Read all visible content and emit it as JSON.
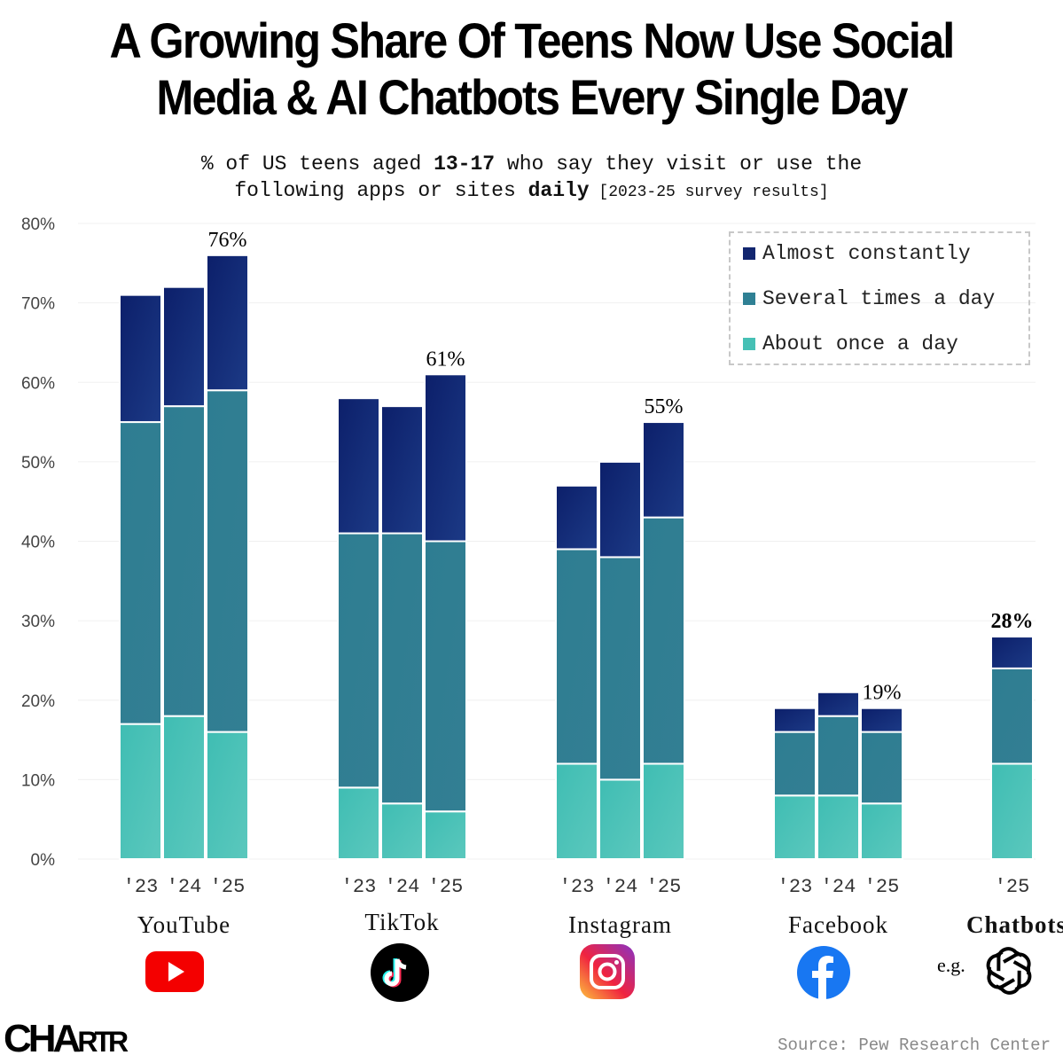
{
  "title_line1": "A Growing Share Of Teens Now Use Social",
  "title_line2": "Media & AI Chatbots Every Single Day",
  "subtitle": {
    "part1": "% of US teens aged ",
    "bold1": "13-17",
    "part2": " who say they visit or use the",
    "part3": "following apps or sites ",
    "bold2": "daily",
    "part4": " [2023-25 survey results]"
  },
  "source": "Source: Pew Research Center",
  "logo": "CHARTR",
  "eg_label": "e.g.",
  "icons": [
    "youtube-icon",
    "tiktok-icon",
    "instagram-icon",
    "facebook-icon",
    "openai-icon"
  ],
  "colors": {
    "almost": "#12266f",
    "several": "#2f8094",
    "once": "#46c0b5"
  },
  "chart_data": {
    "type": "bar",
    "stacked": true,
    "ylim": [
      0,
      80
    ],
    "yticks": [
      "0%",
      "10%",
      "20%",
      "30%",
      "40%",
      "50%",
      "60%",
      "70%",
      "80%"
    ],
    "grid": true,
    "legend_position": "top-right",
    "legend": [
      "Almost constantly",
      "Several times a day",
      "About once a day"
    ],
    "groups": [
      {
        "name": "YouTube",
        "years": [
          "'23",
          "'24",
          "'25"
        ],
        "once": [
          17,
          18,
          16
        ],
        "several": [
          38,
          39,
          43
        ],
        "almost": [
          16,
          15,
          17
        ],
        "total_label": "76%"
      },
      {
        "name": "TikTok",
        "years": [
          "'23",
          "'24",
          "'25"
        ],
        "once": [
          9,
          7,
          6
        ],
        "several": [
          32,
          34,
          34
        ],
        "almost": [
          17,
          16,
          21
        ],
        "total_label": "61%"
      },
      {
        "name": "Instagram",
        "years": [
          "'23",
          "'24",
          "'25"
        ],
        "once": [
          12,
          10,
          12
        ],
        "several": [
          27,
          28,
          31
        ],
        "almost": [
          8,
          12,
          12
        ],
        "total_label": "55%"
      },
      {
        "name": "Facebook",
        "years": [
          "'23",
          "'24",
          "'25"
        ],
        "once": [
          8,
          8,
          7
        ],
        "several": [
          8,
          10,
          9
        ],
        "almost": [
          3,
          3,
          3
        ],
        "total_label": "19%"
      },
      {
        "name": "Chatbots",
        "years": [
          "'25"
        ],
        "once": [
          12
        ],
        "several": [
          12
        ],
        "almost": [
          4
        ],
        "total_label": "28%"
      }
    ]
  }
}
